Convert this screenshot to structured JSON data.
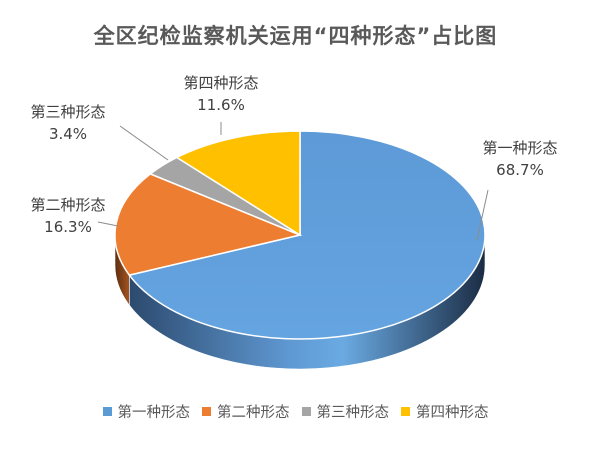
{
  "chart_data": {
    "type": "pie",
    "title": "全区纪检监察机关运用“四种形态”占比图",
    "categories": [
      "第一种形态",
      "第二种形态",
      "第三种形态",
      "第四种形态"
    ],
    "values": [
      68.7,
      16.3,
      3.4,
      11.6
    ],
    "labels": [
      "68.7%",
      "16.3%",
      "3.4%",
      "11.6%"
    ],
    "colors": [
      "#5B9BD5",
      "#ED7D31",
      "#A5A5A5",
      "#FFC000"
    ],
    "style": "3d",
    "legend_position": "bottom"
  }
}
